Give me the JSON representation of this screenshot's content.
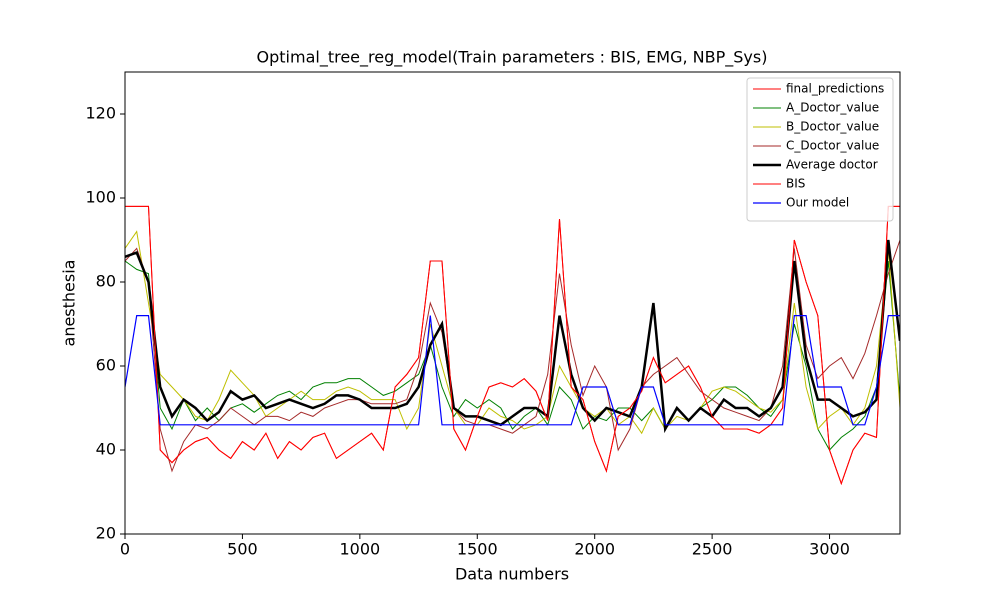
{
  "chart_data": {
    "type": "line",
    "title": "Optimal_tree_reg_model(Train parameters : BIS, EMG, NBP_Sys)",
    "x_label": "Data numbers",
    "y_label": "anesthesia",
    "xlim": [
      0,
      3300
    ],
    "ylim": [
      20,
      130
    ],
    "xticks": [
      0,
      500,
      1000,
      1500,
      2000,
      2500,
      3000
    ],
    "yticks": [
      20,
      40,
      60,
      80,
      100,
      120
    ],
    "legend": "upper right",
    "x": [
      0,
      50,
      100,
      150,
      200,
      250,
      300,
      350,
      400,
      450,
      500,
      550,
      600,
      650,
      700,
      750,
      800,
      850,
      900,
      950,
      1000,
      1050,
      1100,
      1150,
      1200,
      1250,
      1300,
      1350,
      1400,
      1450,
      1500,
      1550,
      1600,
      1650,
      1700,
      1750,
      1800,
      1850,
      1900,
      1950,
      2000,
      2050,
      2100,
      2150,
      2200,
      2250,
      2300,
      2350,
      2400,
      2450,
      2500,
      2550,
      2600,
      2650,
      2700,
      2750,
      2800,
      2850,
      2900,
      2950,
      3000,
      3050,
      3100,
      3150,
      3200,
      3250,
      3300
    ],
    "series": [
      {
        "name": "final_predictions",
        "color": "#ff0000",
        "width": 1,
        "values": [
          98,
          98,
          98,
          40,
          37,
          40,
          42,
          43,
          40,
          38,
          42,
          40,
          44,
          38,
          42,
          40,
          43,
          44,
          38,
          40,
          42,
          44,
          40,
          55,
          58,
          62,
          85,
          85,
          45,
          40,
          48,
          55,
          56,
          55,
          57,
          54,
          47,
          95,
          55,
          52,
          42,
          35,
          48,
          50,
          54,
          62,
          56,
          58,
          60,
          55,
          48,
          45,
          45,
          45,
          44,
          46,
          50,
          90,
          80,
          72,
          40,
          32,
          40,
          44,
          43,
          98,
          98
        ]
      },
      {
        "name": "A_Doctor_value",
        "color": "#008000",
        "width": 1,
        "values": [
          85,
          83,
          82,
          50,
          45,
          52,
          47,
          50,
          47,
          50,
          51,
          49,
          51,
          53,
          54,
          52,
          55,
          56,
          56,
          57,
          57,
          55,
          53,
          54,
          56,
          58,
          65,
          55,
          48,
          52,
          50,
          52,
          50,
          45,
          48,
          50,
          46,
          55,
          52,
          45,
          48,
          47,
          50,
          50,
          47,
          50,
          45,
          50,
          47,
          50,
          52,
          55,
          55,
          53,
          50,
          48,
          52,
          70,
          60,
          45,
          40,
          43,
          45,
          48,
          55,
          85,
          52
        ]
      },
      {
        "name": "B_Doctor_value",
        "color": "#bfbf00",
        "width": 1,
        "values": [
          88,
          92,
          75,
          58,
          55,
          52,
          48,
          47,
          52,
          59,
          56,
          53,
          48,
          50,
          52,
          54,
          52,
          52,
          54,
          55,
          54,
          52,
          52,
          52,
          45,
          50,
          70,
          60,
          50,
          46,
          46,
          50,
          48,
          47,
          45,
          46,
          48,
          60,
          55,
          50,
          48,
          50,
          46,
          48,
          44,
          50,
          45,
          48,
          47,
          50,
          54,
          55,
          54,
          52,
          50,
          49,
          52,
          75,
          55,
          45,
          48,
          50,
          46,
          50,
          60,
          88,
          50
        ]
      },
      {
        "name": "C_Doctor_value",
        "color": "#a52a2a",
        "width": 1,
        "values": [
          85,
          88,
          80,
          45,
          35,
          42,
          46,
          45,
          47,
          50,
          48,
          46,
          48,
          48,
          47,
          49,
          48,
          50,
          51,
          52,
          52,
          51,
          51,
          51,
          52,
          60,
          75,
          68,
          50,
          47,
          46,
          46,
          45,
          44,
          46,
          48,
          58,
          82,
          65,
          53,
          60,
          55,
          40,
          45,
          55,
          58,
          60,
          62,
          58,
          54,
          52,
          50,
          49,
          48,
          47,
          50,
          60,
          88,
          65,
          57,
          60,
          62,
          57,
          63,
          72,
          82,
          90
        ]
      },
      {
        "name": "Average doctor",
        "color": "#000000",
        "width": 2.5,
        "values": [
          86,
          87,
          80,
          55,
          48,
          52,
          50,
          47,
          49,
          54,
          52,
          53,
          50,
          51,
          52,
          51,
          50,
          51,
          53,
          53,
          52,
          50,
          50,
          50,
          51,
          55,
          65,
          70,
          50,
          48,
          48,
          47,
          46,
          48,
          50,
          50,
          48,
          72,
          58,
          50,
          47,
          50,
          49,
          48,
          55,
          75,
          45,
          50,
          47,
          50,
          48,
          52,
          50,
          50,
          48,
          50,
          55,
          85,
          62,
          52,
          52,
          50,
          48,
          49,
          52,
          90,
          66
        ]
      },
      {
        "name": "BIS",
        "color": "#ff0000",
        "width": 1,
        "values": [
          98,
          98,
          98,
          40,
          37,
          40,
          42,
          43,
          40,
          38,
          42,
          40,
          44,
          38,
          42,
          40,
          43,
          44,
          38,
          40,
          42,
          44,
          40,
          55,
          58,
          62,
          85,
          85,
          45,
          40,
          48,
          55,
          56,
          55,
          57,
          54,
          47,
          95,
          55,
          52,
          42,
          35,
          48,
          50,
          54,
          62,
          56,
          58,
          60,
          55,
          48,
          45,
          45,
          45,
          44,
          46,
          50,
          90,
          80,
          72,
          40,
          32,
          40,
          44,
          43,
          98,
          98
        ]
      },
      {
        "name": "Our model",
        "color": "#0000ff",
        "width": 1.2,
        "values": [
          55,
          72,
          72,
          46,
          46,
          46,
          46,
          46,
          46,
          46,
          46,
          46,
          46,
          46,
          46,
          46,
          46,
          46,
          46,
          46,
          46,
          46,
          46,
          46,
          46,
          46,
          72,
          46,
          46,
          46,
          46,
          46,
          46,
          46,
          46,
          46,
          46,
          46,
          46,
          55,
          55,
          55,
          46,
          46,
          55,
          55,
          46,
          46,
          46,
          46,
          46,
          46,
          46,
          46,
          46,
          46,
          46,
          72,
          72,
          55,
          55,
          55,
          46,
          46,
          55,
          72,
          72
        ]
      }
    ]
  }
}
